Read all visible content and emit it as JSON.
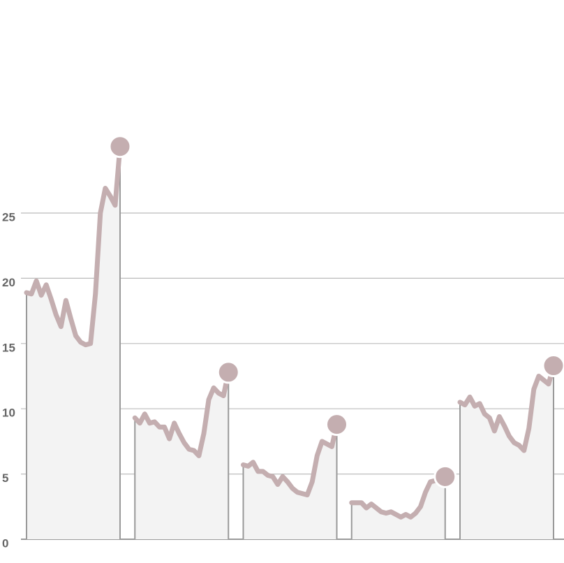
{
  "chart_data": {
    "type": "line",
    "x": [
      0,
      1,
      2,
      3,
      4,
      5,
      6,
      7,
      8,
      9,
      10,
      11,
      12,
      13,
      14,
      15,
      16,
      17,
      18,
      19
    ],
    "series": [
      {
        "color": "#c4aeb0",
        "values": [
          18.9,
          18.8,
          19.8,
          18.7,
          19.5,
          18.4,
          17.2,
          16.3,
          18.3,
          16.9,
          15.6,
          15.1,
          14.9,
          15.0,
          18.8,
          25.0,
          26.9,
          26.3,
          25.6,
          30.1
        ]
      },
      {
        "color": "#c4aeb0",
        "values": [
          9.3,
          8.9,
          9.6,
          8.9,
          9.0,
          8.6,
          8.6,
          7.7,
          8.9,
          8.1,
          7.4,
          6.9,
          6.8,
          6.4,
          8.1,
          10.7,
          11.6,
          11.2,
          11.0,
          12.8
        ]
      },
      {
        "color": "#c4aeb0",
        "values": [
          5.7,
          5.6,
          5.9,
          5.2,
          5.2,
          4.9,
          4.8,
          4.2,
          4.8,
          4.4,
          3.9,
          3.6,
          3.5,
          3.4,
          4.4,
          6.4,
          7.5,
          7.3,
          7.1,
          8.8
        ]
      },
      {
        "color": "#c4aeb0",
        "values": [
          2.8,
          2.8,
          2.8,
          2.4,
          2.7,
          2.4,
          2.1,
          2.0,
          2.1,
          1.9,
          1.7,
          1.9,
          1.7,
          2.0,
          2.5,
          3.6,
          4.4,
          4.5,
          4.4,
          4.8
        ]
      },
      {
        "color": "#c4aeb0",
        "values": [
          10.5,
          10.3,
          10.9,
          10.2,
          10.4,
          9.6,
          9.3,
          8.3,
          9.4,
          8.7,
          7.9,
          7.4,
          7.2,
          6.8,
          8.5,
          11.5,
          12.5,
          12.2,
          11.9,
          13.3
        ]
      }
    ],
    "area_color": "#f3f3f3",
    "ylim": [
      0,
      25
    ],
    "yticks": [
      0,
      5,
      10,
      15,
      20,
      25
    ],
    "grid": true
  }
}
